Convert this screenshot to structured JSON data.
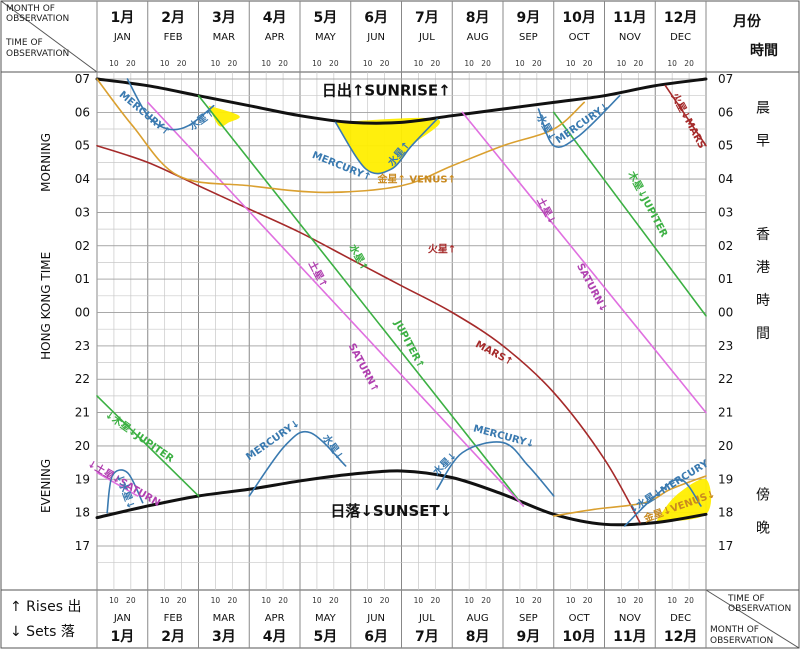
{
  "chart_data": {
    "type": "line",
    "header": {
      "month_of_observation": "MONTH OF OBSERVATION",
      "time_of_observation": "TIME OF OBSERVATION",
      "top_right_label": "月份",
      "top_right_label2": "時間"
    },
    "months": [
      {
        "zh": "1月",
        "en": "JAN"
      },
      {
        "zh": "2月",
        "en": "FEB"
      },
      {
        "zh": "3月",
        "en": "MAR"
      },
      {
        "zh": "4月",
        "en": "APR"
      },
      {
        "zh": "5月",
        "en": "MAY"
      },
      {
        "zh": "6月",
        "en": "JUN"
      },
      {
        "zh": "7月",
        "en": "JUL"
      },
      {
        "zh": "8月",
        "en": "AUG"
      },
      {
        "zh": "9月",
        "en": "SEP"
      },
      {
        "zh": "10月",
        "en": "OCT"
      },
      {
        "zh": "11月",
        "en": "NOV"
      },
      {
        "zh": "12月",
        "en": "DEC"
      }
    ],
    "day_ticks": [
      "10",
      "20"
    ],
    "hour_ticks": [
      "07",
      "06",
      "05",
      "04",
      "03",
      "02",
      "01",
      "00",
      "23",
      "22",
      "21",
      "20",
      "19",
      "18",
      "17"
    ],
    "left_labels": {
      "morning": "MORNING",
      "time": "HONG  KONG  TIME",
      "evening": "EVENING"
    },
    "right_labels": {
      "morning": "晨早",
      "time": "香港時間",
      "evening": "傍晚"
    },
    "legend": {
      "rises": "↑ Rises 出",
      "sets": "↓ Sets 落"
    },
    "x_unit": "month (0 = 1 Jan, 12 = 31 Dec)",
    "y_unit": "hours after 17:00, Hong Kong Time",
    "series": [
      {
        "name": "SUNRISE",
        "color": "#111111",
        "points": [
          [
            0,
            14.0
          ],
          [
            1,
            13.8
          ],
          [
            2,
            13.5
          ],
          [
            3,
            13.2
          ],
          [
            4,
            12.9
          ],
          [
            5,
            12.7
          ],
          [
            6,
            12.7
          ],
          [
            7,
            12.9
          ],
          [
            8,
            13.1
          ],
          [
            9,
            13.3
          ],
          [
            10,
            13.5
          ],
          [
            11,
            13.8
          ],
          [
            12,
            14.0
          ]
        ]
      },
      {
        "name": "SUNSET",
        "color": "#111111",
        "points": [
          [
            0,
            0.85
          ],
          [
            1,
            1.2
          ],
          [
            2,
            1.5
          ],
          [
            3,
            1.7
          ],
          [
            4,
            1.95
          ],
          [
            5,
            2.15
          ],
          [
            6,
            2.25
          ],
          [
            7,
            2.05
          ],
          [
            8,
            1.55
          ],
          [
            9,
            0.95
          ],
          [
            10,
            0.65
          ],
          [
            11,
            0.7
          ],
          [
            12,
            0.95
          ]
        ]
      },
      {
        "name": "MARS",
        "color": "#a52a2a",
        "points": [
          [
            0,
            12.0
          ],
          [
            1,
            11.5
          ],
          [
            2,
            10.8
          ],
          [
            3,
            10.1
          ],
          [
            4,
            9.4
          ],
          [
            5,
            8.6
          ],
          [
            6,
            7.8
          ],
          [
            7,
            7.0
          ],
          [
            8,
            6.0
          ],
          [
            9,
            4.6
          ],
          [
            10,
            2.6
          ],
          [
            10.7,
            0.7
          ]
        ]
      },
      {
        "name": "MARS",
        "color": "#a52a2a",
        "points": [
          [
            11.2,
            13.8
          ],
          [
            12,
            12.0
          ]
        ]
      },
      {
        "name": "JUPITER",
        "color": "#3cb043",
        "points": [
          [
            2,
            13.5
          ],
          [
            8.4,
            1.2
          ]
        ]
      },
      {
        "name": "JUPITER",
        "color": "#3cb043",
        "points": [
          [
            0,
            4.5
          ],
          [
            2,
            1.5
          ]
        ]
      },
      {
        "name": "JUPITER",
        "color": "#3cb043",
        "points": [
          [
            9,
            13.0
          ],
          [
            12,
            6.9
          ]
        ]
      },
      {
        "name": "SATURN",
        "color": "#e070e0",
        "points": [
          [
            1,
            13.3
          ],
          [
            8.4,
            1.2
          ]
        ]
      },
      {
        "name": "SATURN",
        "color": "#e070e0",
        "points": [
          [
            7.2,
            13.0
          ],
          [
            12,
            4.0
          ]
        ]
      },
      {
        "name": "SATURN",
        "color": "#e070e0",
        "points": [
          [
            0,
            2.2
          ],
          [
            0.8,
            1.5
          ]
        ]
      },
      {
        "name": "VENUS",
        "color": "#daa030",
        "points": [
          [
            0,
            14.0
          ],
          [
            0.7,
            12.6
          ],
          [
            1.6,
            11.1
          ],
          [
            3,
            10.8
          ],
          [
            4.5,
            10.6
          ],
          [
            6,
            10.8
          ],
          [
            7,
            11.4
          ],
          [
            8,
            12.0
          ],
          [
            9,
            12.5
          ],
          [
            9.6,
            13.3
          ]
        ]
      },
      {
        "name": "VENUS",
        "color": "#daa030",
        "points": [
          [
            9,
            0.9
          ],
          [
            9.8,
            1.1
          ],
          [
            10.8,
            1.3
          ],
          [
            11.3,
            1.7
          ],
          [
            12,
            2.1
          ]
        ]
      },
      {
        "name": "MERCURY",
        "color": "#3a7ab0",
        "points": [
          [
            0.6,
            14.0
          ],
          [
            1.0,
            12.9
          ],
          [
            1.4,
            12.5
          ],
          [
            1.8,
            12.6
          ],
          [
            2.3,
            13.2
          ]
        ]
      },
      {
        "name": "MERCURY",
        "color": "#3a7ab0",
        "points": [
          [
            4.7,
            12.7
          ],
          [
            5.3,
            11.3
          ],
          [
            5.8,
            11.3
          ],
          [
            6.2,
            12.0
          ],
          [
            6.7,
            12.8
          ]
        ]
      },
      {
        "name": "MERCURY",
        "color": "#3a7ab0",
        "points": [
          [
            8.7,
            13.1
          ],
          [
            9.0,
            12.0
          ],
          [
            9.5,
            12.3
          ],
          [
            10.3,
            13.5
          ]
        ]
      },
      {
        "name": "MERCURY",
        "color": "#3a7ab0",
        "points": [
          [
            0.2,
            1.0
          ],
          [
            0.3,
            2.1
          ],
          [
            0.6,
            2.2
          ],
          [
            0.9,
            1.3
          ]
        ]
      },
      {
        "name": "MERCURY",
        "color": "#3a7ab0",
        "points": [
          [
            3.0,
            1.5
          ],
          [
            3.7,
            3.0
          ],
          [
            4.2,
            3.4
          ],
          [
            4.9,
            2.4
          ]
        ]
      },
      {
        "name": "MERCURY",
        "color": "#3a7ab0",
        "points": [
          [
            6.7,
            1.7
          ],
          [
            7.2,
            2.8
          ],
          [
            8.0,
            3.1
          ],
          [
            8.5,
            2.4
          ],
          [
            9.0,
            1.5
          ]
        ]
      },
      {
        "name": "MERCURY",
        "color": "#3a7ab0",
        "points": [
          [
            10.4,
            0.6
          ],
          [
            11.0,
            1.5
          ],
          [
            11.5,
            2.0
          ],
          [
            11.9,
            1.2
          ]
        ]
      }
    ],
    "highlights": [
      {
        "color": "#ffee00",
        "points": [
          [
            2.2,
            13.2
          ],
          [
            2.8,
            12.9
          ],
          [
            2.6,
            12.7
          ],
          [
            2.4,
            12.6
          ],
          [
            2.2,
            13.2
          ]
        ]
      },
      {
        "color": "#ffee00",
        "points": [
          [
            4.7,
            12.7
          ],
          [
            5.3,
            11.3
          ],
          [
            5.8,
            11.3
          ],
          [
            6.2,
            12.0
          ],
          [
            6.7,
            12.8
          ],
          [
            4.7,
            12.7
          ]
        ]
      },
      {
        "color": "#ffee00",
        "points": [
          [
            11.0,
            0.7
          ],
          [
            11.4,
            1.5
          ],
          [
            12,
            2.0
          ],
          [
            12,
            0.95
          ],
          [
            11.0,
            0.7
          ]
        ]
      }
    ],
    "annotations": [
      {
        "text": "日出↑SUNRISE↑",
        "color": "#111111",
        "x": 5.7,
        "y": 13.5,
        "rot": 0,
        "size": "big"
      },
      {
        "text": "日落↓SUNSET↓",
        "color": "#111111",
        "x": 5.8,
        "y": 0.9,
        "rot": 0,
        "size": "big"
      },
      {
        "text": "金星↑ VENUS↑",
        "color": "#c98a20",
        "x": 6.3,
        "y": 10.9,
        "rot": 0
      },
      {
        "text": "火星↑",
        "color": "#a52a2a",
        "x": 6.8,
        "y": 8.8,
        "rot": 0
      },
      {
        "text": "MARS↑",
        "color": "#a52a2a",
        "x": 7.8,
        "y": 5.7,
        "rot": 28
      },
      {
        "text": "火星↓MARS",
        "color": "#a52a2a",
        "x": 11.6,
        "y": 12.7,
        "rot": 62
      },
      {
        "text": "水星↑",
        "color": "#3cb043",
        "x": 5.1,
        "y": 8.6,
        "rot": 62
      },
      {
        "text": "JUPITER↑",
        "color": "#3cb043",
        "x": 6.1,
        "y": 6.0,
        "rot": 62
      },
      {
        "text": "木星↓JUPITER",
        "color": "#3cb043",
        "x": 10.8,
        "y": 10.2,
        "rot": 62
      },
      {
        "text": "↓木星↓JUPITER",
        "color": "#3cb043",
        "x": 0.8,
        "y": 3.2,
        "rot": 35
      },
      {
        "text": "土星↑",
        "color": "#b040b0",
        "x": 4.3,
        "y": 8.1,
        "rot": 62
      },
      {
        "text": "SATURN↑",
        "color": "#b040b0",
        "x": 5.2,
        "y": 5.3,
        "rot": 62
      },
      {
        "text": "土星↓",
        "color": "#b040b0",
        "x": 8.8,
        "y": 10.0,
        "rot": 62
      },
      {
        "text": "SATURN↓",
        "color": "#b040b0",
        "x": 9.7,
        "y": 7.7,
        "rot": 62
      },
      {
        "text": "↓土星↓SATURN",
        "color": "#b040b0",
        "x": 0.5,
        "y": 1.8,
        "rot": 30
      },
      {
        "text": "MERCURY↑",
        "color": "#3a7ab0",
        "x": 0.9,
        "y": 12.9,
        "rot": 40
      },
      {
        "text": "水星↑",
        "color": "#3a7ab0",
        "x": 2.1,
        "y": 12.7,
        "rot": -35
      },
      {
        "text": "MERCURY↑",
        "color": "#3a7ab0",
        "x": 4.8,
        "y": 11.3,
        "rot": 22
      },
      {
        "text": "水星↑",
        "color": "#3a7ab0",
        "x": 6.0,
        "y": 11.7,
        "rot": -50
      },
      {
        "text": "水星↓",
        "color": "#3a7ab0",
        "x": 8.8,
        "y": 12.5,
        "rot": 60
      },
      {
        "text": "MERCURY↓",
        "color": "#3a7ab0",
        "x": 9.6,
        "y": 12.6,
        "rot": -35
      },
      {
        "text": "↓水星↓",
        "color": "#3a7ab0",
        "x": 0.5,
        "y": 1.6,
        "rot": 70
      },
      {
        "text": "MERCURY↓",
        "color": "#3a7ab0",
        "x": 3.5,
        "y": 3.1,
        "rot": -35
      },
      {
        "text": "水星↓",
        "color": "#3a7ab0",
        "x": 4.6,
        "y": 2.9,
        "rot": 55
      },
      {
        "text": "水星↓",
        "color": "#3a7ab0",
        "x": 6.9,
        "y": 2.4,
        "rot": -45
      },
      {
        "text": "MERCURY↓",
        "color": "#3a7ab0",
        "x": 8.0,
        "y": 3.2,
        "rot": 15
      },
      {
        "text": "↓水星↓MERCURY",
        "color": "#3a7ab0",
        "x": 11.3,
        "y": 1.7,
        "rot": -32
      },
      {
        "text": "金星↓VENUS↓",
        "color": "#c98a20",
        "x": 11.5,
        "y": 1.1,
        "rot": -20
      }
    ]
  }
}
